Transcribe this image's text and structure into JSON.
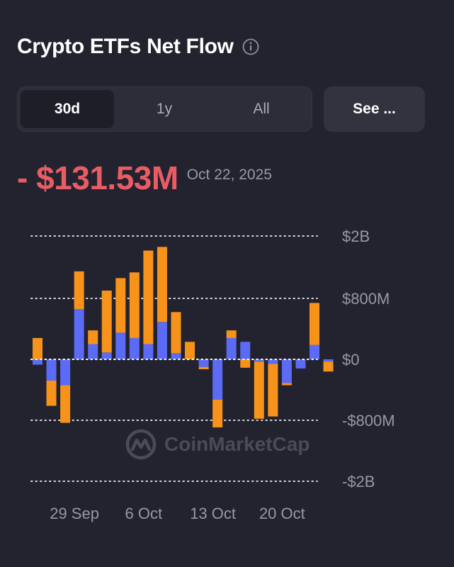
{
  "header": {
    "title": "Crypto ETFs Net Flow",
    "info_icon": "info-circle-icon"
  },
  "tabs": [
    {
      "label": "30d",
      "active": true
    },
    {
      "label": "1y",
      "active": false
    },
    {
      "label": "All",
      "active": false
    }
  ],
  "see_button": {
    "label": "See ..."
  },
  "headline": {
    "value": "- $131.53M",
    "date": "Oct 22, 2025"
  },
  "watermark": {
    "text": "CoinMarketCap",
    "icon": "coinmarketcap-logo-icon"
  },
  "colors": {
    "background": "#23232f",
    "orange": "#f7931a",
    "blue": "#5b6bf5",
    "negative": "#ea5c63",
    "text_muted": "#9598a6"
  },
  "chart_data": {
    "type": "bar",
    "stacked": true,
    "grid": true,
    "y_ticks": [
      {
        "label": "$2B",
        "value": 2000
      },
      {
        "label": "$800M",
        "value": 800
      },
      {
        "label": "$0",
        "value": 0
      },
      {
        "label": "-$800M",
        "value": -800
      },
      {
        "label": "-$2B",
        "value": -2000
      }
    ],
    "x_ticks": [
      {
        "label": "29 Sep",
        "index": 2
      },
      {
        "label": "6 Oct",
        "index": 7
      },
      {
        "label": "13 Oct",
        "index": 12
      },
      {
        "label": "20 Oct",
        "index": 17
      }
    ],
    "series": [
      {
        "key": "blue",
        "color": "#5b6bf5",
        "values": [
          -70,
          -280,
          -340,
          660,
          200,
          90,
          350,
          280,
          200,
          490,
          80,
          0,
          -100,
          -530,
          280,
          230,
          -30,
          -60,
          -310,
          -120,
          190,
          -30
        ]
      },
      {
        "key": "orange",
        "color": "#f7931a",
        "values": [
          280,
          -330,
          -510,
          660,
          180,
          860,
          840,
          1020,
          1520,
          1300,
          540,
          230,
          -30,
          -410,
          100,
          -110,
          -750,
          -690,
          -30,
          0,
          550,
          -130
        ]
      }
    ]
  }
}
